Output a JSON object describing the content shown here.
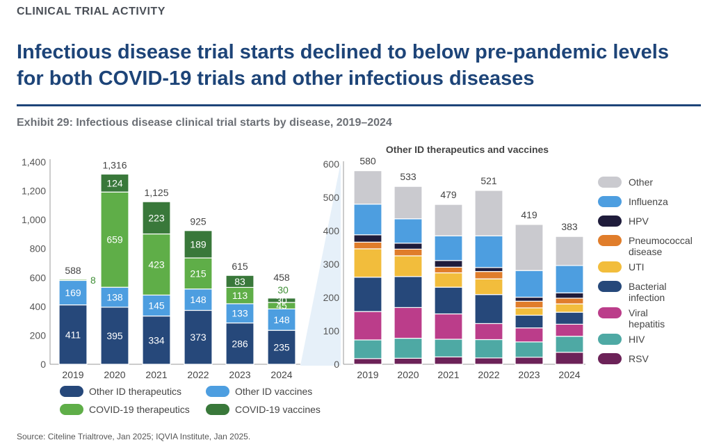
{
  "header": {
    "kicker": "CLINICAL TRIAL ACTIVITY",
    "title": "Infectious disease trial starts declined to below pre-pandemic levels for both COVID-19 trials and other infectious diseases",
    "exhibit": "Exhibit 29: Infectious disease clinical trial starts by disease, 2019–2024"
  },
  "source": "Source: Citeline Trialtrove, Jan 2025; IQVIA Institute, Jan 2025.",
  "colors": {
    "other_id_therapeutics": "#26487a",
    "other_id_vaccines": "#4d9ee0",
    "covid_therapeutics": "#5fae48",
    "covid_vaccines": "#39783a",
    "Other": "#cacacf",
    "Influenza": "#4d9ee0",
    "HPV": "#1f1c3b",
    "Pneumococcal disease": "#e07d2b",
    "UTI": "#f2bd3c",
    "Bacterial infection": "#26487a",
    "Viral hepatitis": "#bb3d8a",
    "HIV": "#4ea9a4",
    "RSV": "#6c2258",
    "connector": "#dbeaf7",
    "axis": "#999999",
    "text": "#444444",
    "total_green_label": "#3f8f36"
  },
  "chart_data": [
    {
      "type": "bar",
      "stacked": true,
      "categories": [
        "2019",
        "2020",
        "2021",
        "2022",
        "2023",
        "2024"
      ],
      "ylim": [
        0,
        1400
      ],
      "yticks": [
        "0",
        "200",
        "400",
        "600",
        "800",
        "1,000",
        "1,200",
        "1,400"
      ],
      "ytick_values": [
        0,
        200,
        400,
        600,
        800,
        1000,
        1200,
        1400
      ],
      "totals": [
        "588",
        "1,316",
        "1,125",
        "925",
        "615",
        "458"
      ],
      "series": [
        {
          "name": "Other ID therapeutics",
          "values": [
            411,
            395,
            334,
            373,
            286,
            235
          ],
          "labels": [
            "411",
            "395",
            "334",
            "373",
            "286",
            "235"
          ]
        },
        {
          "name": "Other ID vaccines",
          "values": [
            169,
            138,
            145,
            148,
            133,
            148
          ],
          "labels": [
            "169",
            "138",
            "145",
            "148",
            "133",
            "148"
          ]
        },
        {
          "name": "COVID-19 therapeutics",
          "values": [
            8,
            659,
            423,
            215,
            113,
            45
          ],
          "labels": [
            "8",
            "659",
            "423",
            "215",
            "113",
            "45"
          ]
        },
        {
          "name": "COVID-19 vaccines",
          "values": [
            0,
            124,
            223,
            189,
            83,
            30
          ],
          "labels": [
            "",
            "124",
            "223",
            "189",
            "83",
            "30"
          ]
        }
      ],
      "legend": "bottom"
    },
    {
      "type": "bar",
      "stacked": true,
      "title": "Other ID therapeutics and vaccines",
      "categories": [
        "2019",
        "2020",
        "2021",
        "2022",
        "2023",
        "2024"
      ],
      "ylim": [
        0,
        600
      ],
      "yticks": [
        "0",
        "100",
        "200",
        "300",
        "400",
        "500",
        "600"
      ],
      "ytick_values": [
        0,
        100,
        200,
        300,
        400,
        500,
        600
      ],
      "totals": [
        "580",
        "533",
        "479",
        "521",
        "419",
        "383"
      ],
      "series": [
        {
          "name": "RSV",
          "values": [
            17,
            18,
            22,
            19,
            21,
            36
          ]
        },
        {
          "name": "HIV",
          "values": [
            56,
            60,
            53,
            55,
            46,
            48
          ]
        },
        {
          "name": "Viral hepatitis",
          "values": [
            85,
            92,
            76,
            48,
            42,
            36
          ]
        },
        {
          "name": "Bacterial infection",
          "values": [
            103,
            93,
            80,
            87,
            38,
            36
          ]
        },
        {
          "name": "UTI",
          "values": [
            85,
            62,
            43,
            47,
            22,
            25
          ]
        },
        {
          "name": "Pneumococcal disease",
          "values": [
            20,
            20,
            17,
            22,
            20,
            17
          ]
        },
        {
          "name": "HPV",
          "values": [
            22,
            18,
            20,
            12,
            12,
            16
          ]
        },
        {
          "name": "Influenza",
          "values": [
            92,
            73,
            74,
            95,
            80,
            82
          ]
        },
        {
          "name": "Other",
          "values": [
            100,
            97,
            94,
            136,
            138,
            87
          ]
        }
      ],
      "legend": "right"
    }
  ],
  "legend_left": [
    {
      "name": "Other ID therapeutics",
      "color": "#26487a"
    },
    {
      "name": "Other ID vaccines",
      "color": "#4d9ee0"
    },
    {
      "name": "COVID-19 therapeutics",
      "color": "#5fae48"
    },
    {
      "name": "COVID-19 vaccines",
      "color": "#39783a"
    }
  ],
  "legend_right": [
    {
      "name": "Other",
      "label": "Other",
      "color": "#cacacf"
    },
    {
      "name": "Influenza",
      "label": "Influenza",
      "color": "#4d9ee0"
    },
    {
      "name": "HPV",
      "label": "HPV",
      "color": "#1f1c3b"
    },
    {
      "name": "Pneumococcal disease",
      "label": "Pneumococcal disease",
      "color": "#e07d2b"
    },
    {
      "name": "UTI",
      "label": "UTI",
      "color": "#f2bd3c"
    },
    {
      "name": "Bacterial infection",
      "label": "Bacterial infection",
      "color": "#26487a"
    },
    {
      "name": "Viral hepatitis",
      "label": "Viral hepatitis",
      "color": "#bb3d8a"
    },
    {
      "name": "HIV",
      "label": "HIV",
      "color": "#4ea9a4"
    },
    {
      "name": "RSV",
      "label": "RSV",
      "color": "#6c2258"
    }
  ]
}
